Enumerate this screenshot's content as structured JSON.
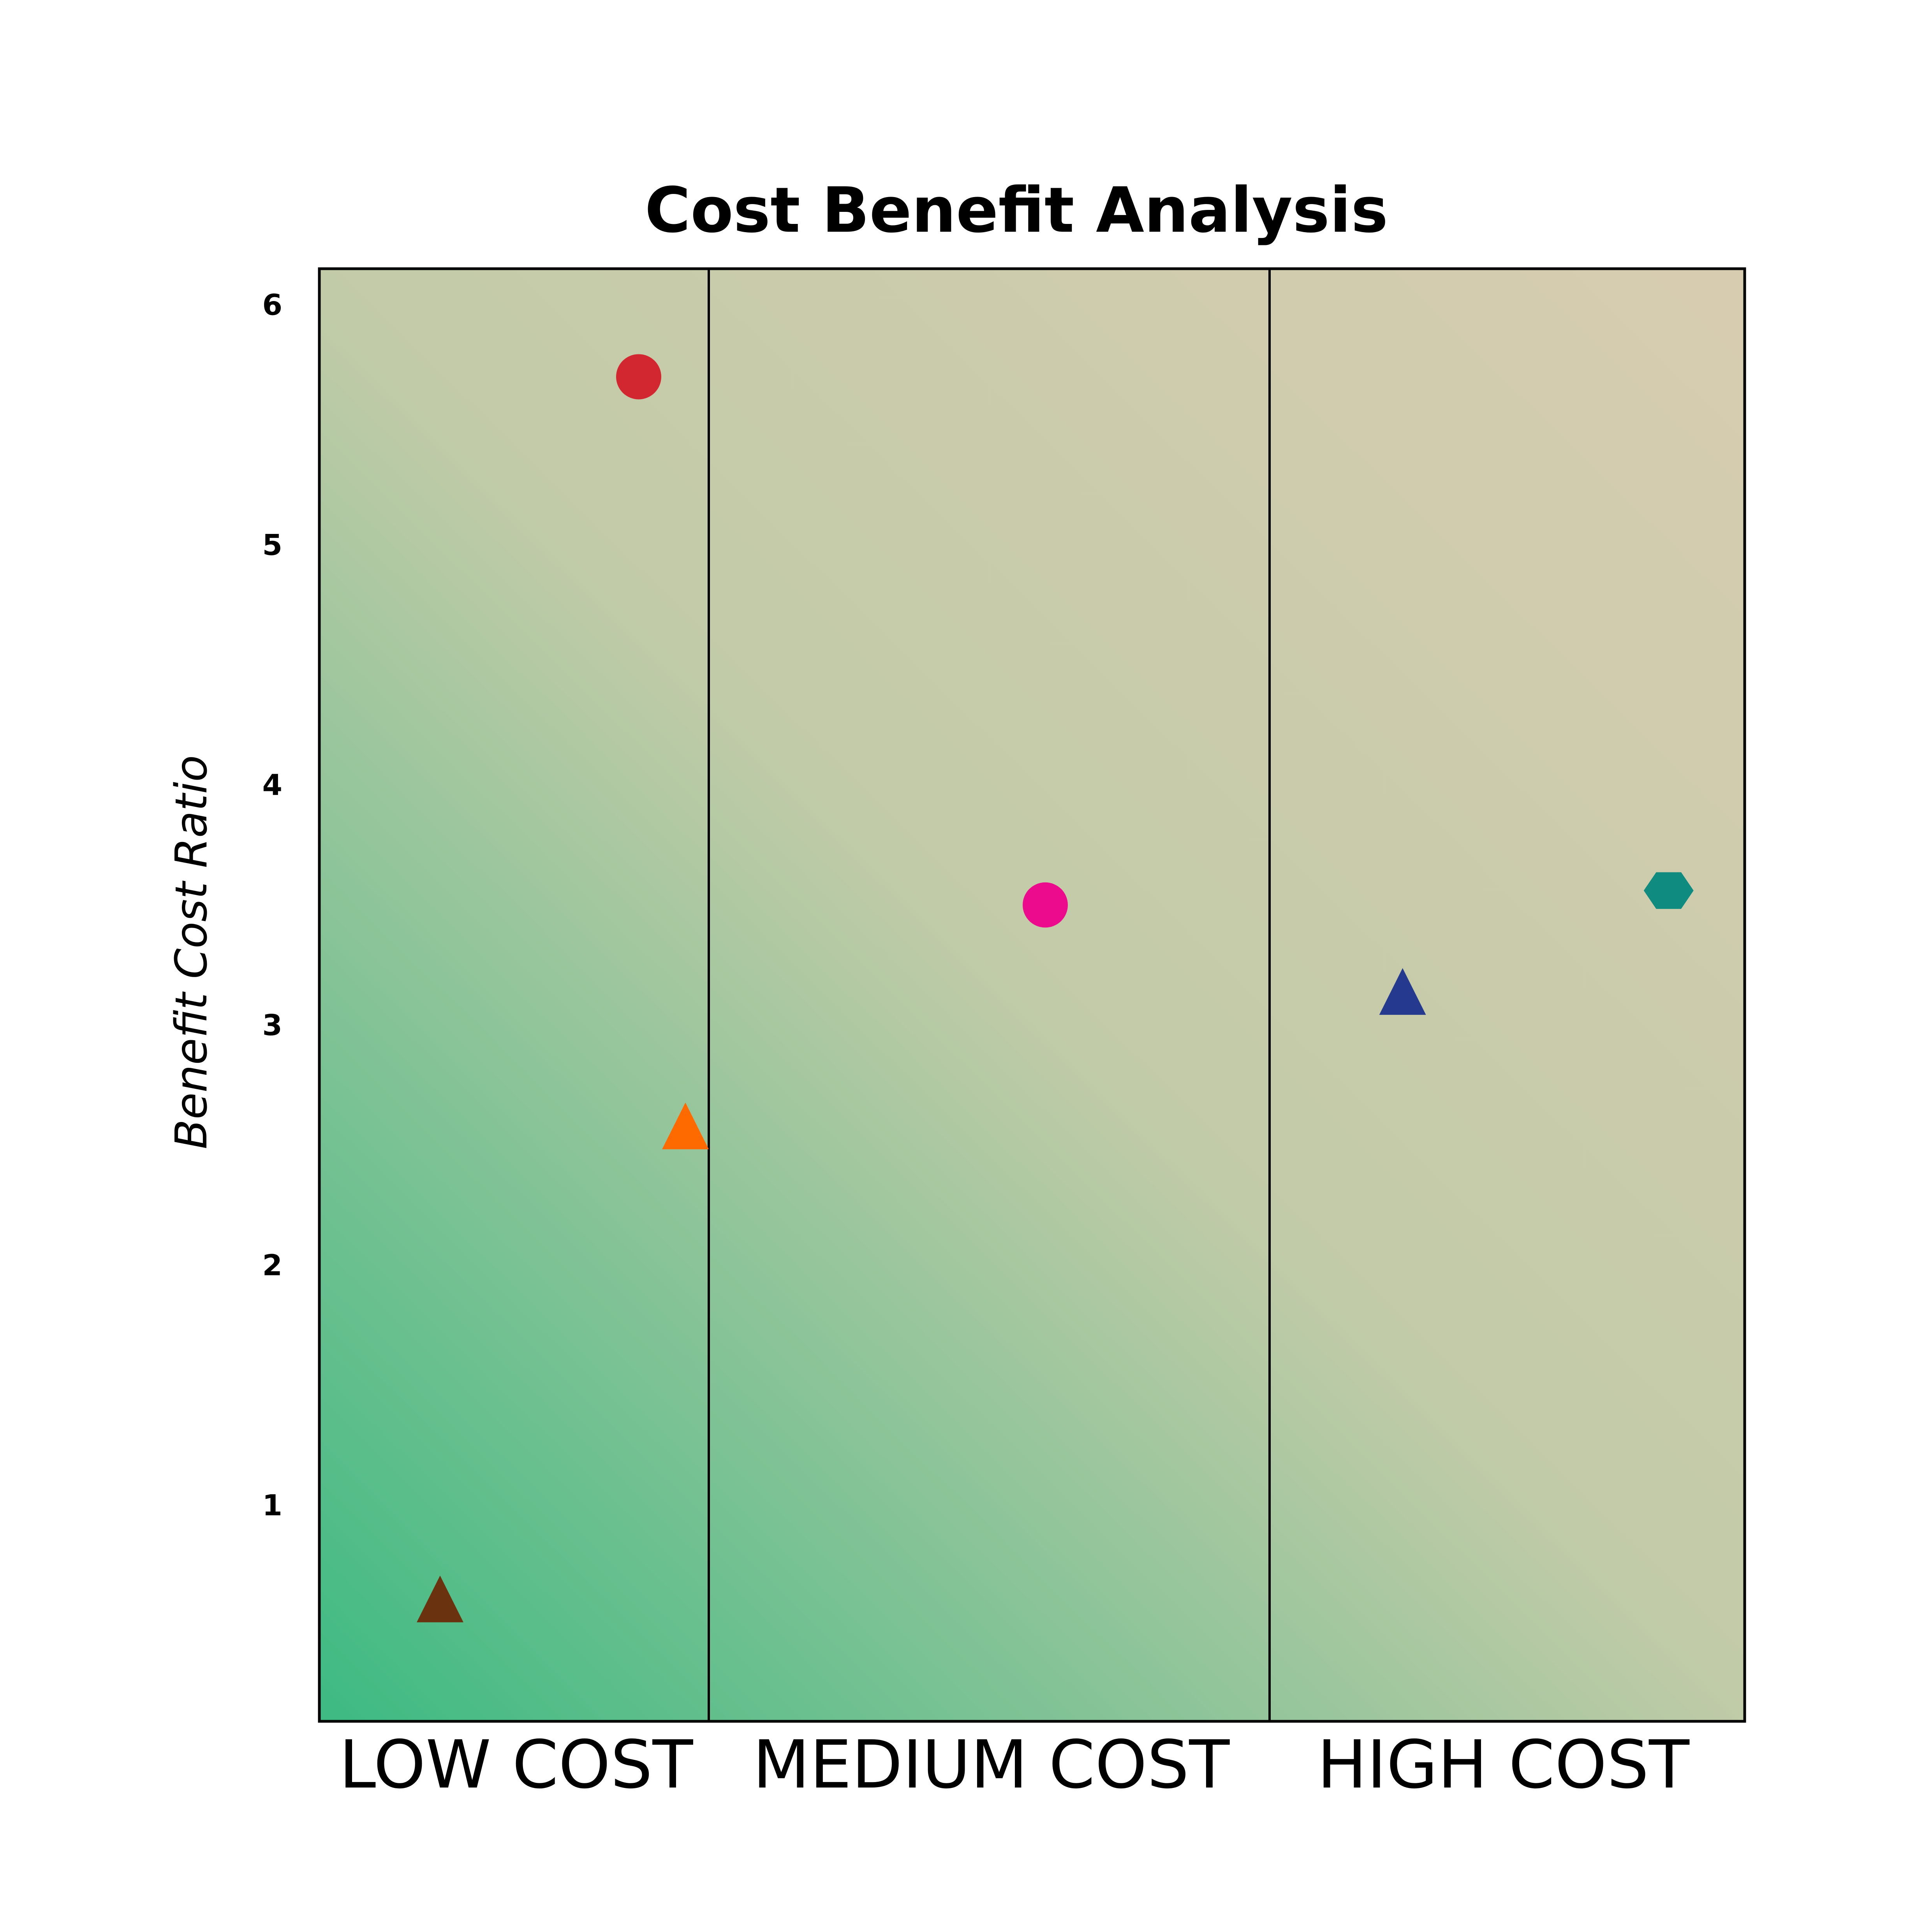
{
  "chart_data": {
    "type": "scatter",
    "title": "Cost Benefit Analysis",
    "ylabel": "Benefit Cost Ratio",
    "xlabel": "",
    "categories": [
      "LOW COST",
      "MEDIUM COST",
      "HIGH COST"
    ],
    "y_ticks": [
      1,
      2,
      3,
      4,
      5,
      6
    ],
    "ylim": [
      0.1,
      6.15
    ],
    "grid": false,
    "legend": "none",
    "background_gradient": [
      "#3dba82",
      "#c2cba8",
      "#d8ccb0"
    ],
    "points": [
      {
        "category": "LOW COST",
        "position": 0.82,
        "y": 5.7,
        "marker": "circle",
        "color": "#d22630"
      },
      {
        "category": "LOW COST",
        "position": 0.94,
        "y": 2.57,
        "marker": "triangle",
        "color": "#ff6a00"
      },
      {
        "category": "LOW COST",
        "position": 0.31,
        "y": 0.6,
        "marker": "triangle",
        "color": "#6b3210"
      },
      {
        "category": "MEDIUM COST",
        "position": 0.6,
        "y": 3.5,
        "marker": "circle",
        "color": "#ec0b8d"
      },
      {
        "category": "HIGH COST",
        "position": 0.28,
        "y": 3.13,
        "marker": "triangle",
        "color": "#253a8e"
      },
      {
        "category": "HIGH COST",
        "position": 0.84,
        "y": 3.56,
        "marker": "hexagon",
        "color": "#0f8b80"
      }
    ]
  }
}
